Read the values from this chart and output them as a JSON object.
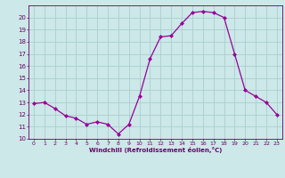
{
  "x": [
    0,
    1,
    2,
    3,
    4,
    5,
    6,
    7,
    8,
    9,
    10,
    11,
    12,
    13,
    14,
    15,
    16,
    17,
    18,
    19,
    20,
    21,
    22,
    23
  ],
  "y": [
    12.9,
    13.0,
    12.5,
    11.9,
    11.7,
    11.2,
    11.4,
    11.2,
    10.4,
    11.2,
    13.5,
    16.6,
    18.4,
    18.5,
    19.5,
    20.4,
    20.5,
    20.4,
    20.0,
    17.0,
    14.0,
    13.5,
    13.0,
    12.0
  ],
  "line_color": "#990099",
  "marker": "D",
  "marker_size": 2.0,
  "bg_color": "#cce8e8",
  "grid_color": "#aacece",
  "xlabel": "Windchill (Refroidissement éolien,°C)",
  "xlabel_color": "#660066",
  "tick_color": "#660066",
  "ylim": [
    10,
    21
  ],
  "xlim": [
    -0.5,
    23.5
  ],
  "yticks": [
    10,
    11,
    12,
    13,
    14,
    15,
    16,
    17,
    18,
    19,
    20
  ],
  "xticks": [
    0,
    1,
    2,
    3,
    4,
    5,
    6,
    7,
    8,
    9,
    10,
    11,
    12,
    13,
    14,
    15,
    16,
    17,
    18,
    19,
    20,
    21,
    22,
    23
  ]
}
